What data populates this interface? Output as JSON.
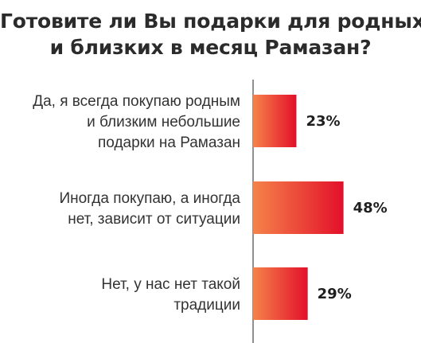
{
  "title": {
    "line1": "Готовите ли Вы подарки для родных",
    "line2": "и близких в месяц Рамазан?"
  },
  "colors": {
    "bar_left": "#f5834a",
    "bar_right": "#e3102a",
    "axis": "#555555",
    "text": "#333333"
  },
  "chart_data": {
    "type": "bar",
    "orientation": "horizontal",
    "categories": [
      "Да, я всегда покупаю родным и близким небольшие подарки на Рамазан",
      "Иногда покупаю, а иногда нет, зависит от ситуации",
      "Нет, у нас нет такой традиции"
    ],
    "category_lines": [
      [
        "Да, я всегда покупаю родным",
        "и близким небольшие",
        "подарки на Рамазан"
      ],
      [
        "Иногда покупаю, а иногда",
        "нет, зависит от ситуации"
      ],
      [
        "Нет, у нас нет такой",
        "традиции"
      ]
    ],
    "values": [
      23,
      48,
      29
    ],
    "value_labels": [
      "23%",
      "48%",
      "29%"
    ],
    "unit": "%",
    "title": "Готовите ли Вы подарки для родных и близких в месяц Рамазан?",
    "xlabel": "",
    "ylabel": "",
    "xlim": [
      0,
      52
    ],
    "grid": false,
    "legend": "none"
  }
}
